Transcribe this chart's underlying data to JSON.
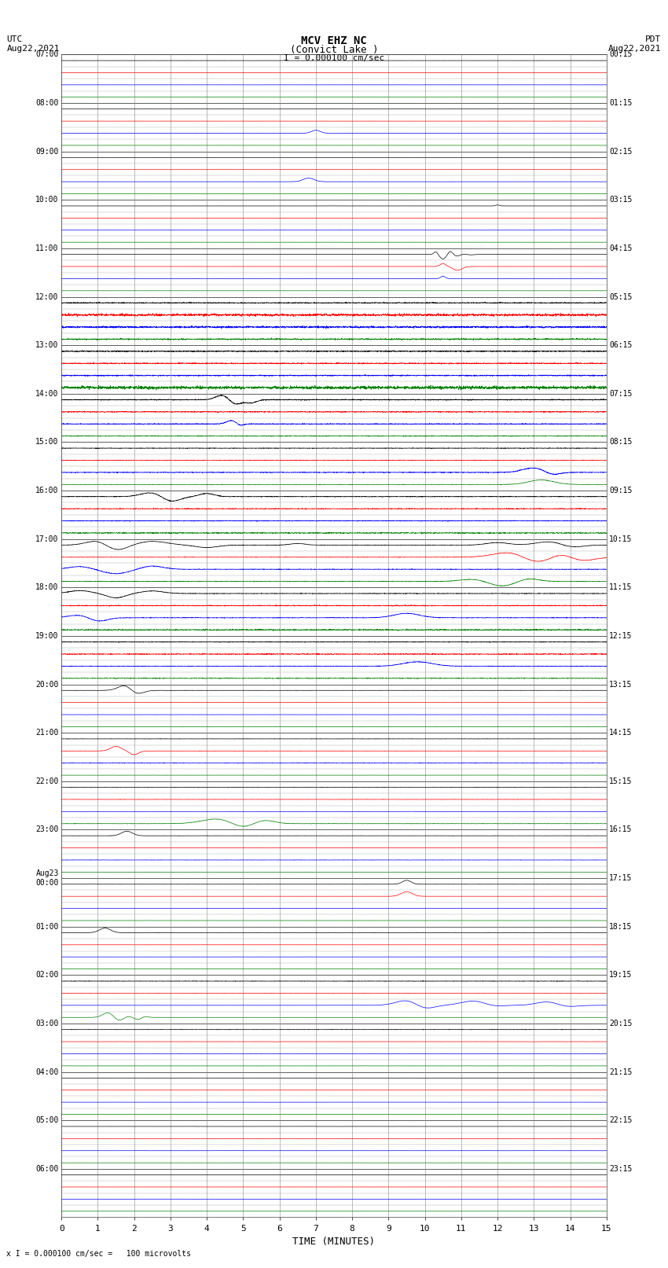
{
  "title_line1": "MCV EHZ NC",
  "title_line2": "(Convict Lake )",
  "title_line3": "I = 0.000100 cm/sec",
  "left_header_line1": "UTC",
  "left_header_line2": "Aug22,2021",
  "right_header_line1": "PDT",
  "right_header_line2": "Aug22,2021",
  "footer": "x I = 0.000100 cm/sec =   100 microvolts",
  "xlabel": "TIME (MINUTES)",
  "num_rows": 24,
  "traces_per_row": 4,
  "trace_colors": [
    "black",
    "red",
    "blue",
    "green"
  ],
  "fig_width": 8.5,
  "fig_height": 16.13,
  "left_label_times_utc": [
    "07:00",
    "08:00",
    "09:00",
    "10:00",
    "11:00",
    "12:00",
    "13:00",
    "14:00",
    "15:00",
    "16:00",
    "17:00",
    "18:00",
    "19:00",
    "20:00",
    "21:00",
    "22:00",
    "23:00",
    "Aug23\n00:00",
    "01:00",
    "02:00",
    "03:00",
    "04:00",
    "05:00",
    "06:00"
  ],
  "right_label_times_pdt": [
    "00:15",
    "01:15",
    "02:15",
    "03:15",
    "04:15",
    "05:15",
    "06:15",
    "07:15",
    "08:15",
    "09:15",
    "10:15",
    "11:15",
    "12:15",
    "13:15",
    "14:15",
    "15:15",
    "16:15",
    "17:15",
    "18:15",
    "19:15",
    "20:15",
    "21:15",
    "22:15",
    "23:15"
  ],
  "xmin": 0,
  "xmax": 15,
  "xticks": [
    0,
    1,
    2,
    3,
    4,
    5,
    6,
    7,
    8,
    9,
    10,
    11,
    12,
    13,
    14,
    15
  ]
}
